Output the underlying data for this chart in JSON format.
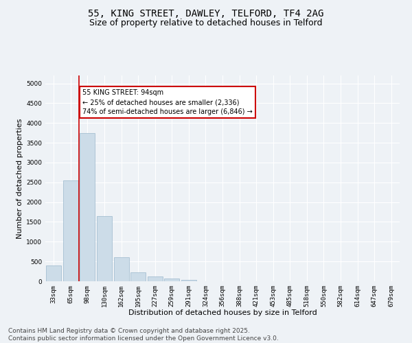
{
  "title_line1": "55, KING STREET, DAWLEY, TELFORD, TF4 2AG",
  "title_line2": "Size of property relative to detached houses in Telford",
  "xlabel": "Distribution of detached houses by size in Telford",
  "ylabel": "Number of detached properties",
  "categories": [
    "33sqm",
    "65sqm",
    "98sqm",
    "130sqm",
    "162sqm",
    "195sqm",
    "227sqm",
    "259sqm",
    "291sqm",
    "324sqm",
    "356sqm",
    "388sqm",
    "421sqm",
    "453sqm",
    "485sqm",
    "518sqm",
    "550sqm",
    "582sqm",
    "614sqm",
    "647sqm",
    "679sqm"
  ],
  "values": [
    400,
    2550,
    3750,
    1650,
    600,
    220,
    120,
    65,
    40,
    0,
    0,
    0,
    0,
    0,
    0,
    0,
    0,
    0,
    0,
    0,
    0
  ],
  "bar_color": "#ccdce8",
  "bar_edgecolor": "#9ab8cc",
  "vline_color": "#cc0000",
  "annotation_text": "55 KING STREET: 94sqm\n← 25% of detached houses are smaller (2,336)\n74% of semi-detached houses are larger (6,846) →",
  "annotation_box_edgecolor": "#cc0000",
  "annotation_box_facecolor": "white",
  "ylim": [
    0,
    5200
  ],
  "yticks": [
    0,
    500,
    1000,
    1500,
    2000,
    2500,
    3000,
    3500,
    4000,
    4500,
    5000
  ],
  "footer_line1": "Contains HM Land Registry data © Crown copyright and database right 2025.",
  "footer_line2": "Contains public sector information licensed under the Open Government Licence v3.0.",
  "bg_color": "#eef2f6",
  "grid_color": "#ffffff",
  "title_fontsize": 10,
  "subtitle_fontsize": 9,
  "axis_label_fontsize": 8,
  "tick_fontsize": 6.5,
  "footer_fontsize": 6.5
}
